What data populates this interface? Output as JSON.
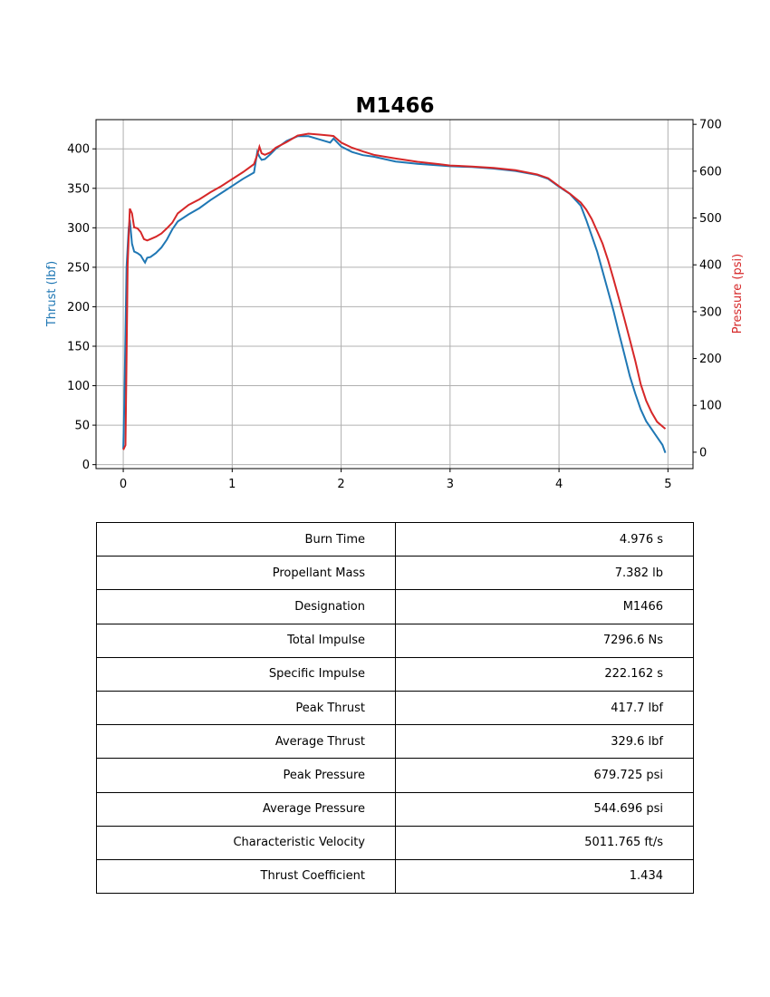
{
  "chart_data": {
    "type": "line",
    "title": "M1466",
    "xlabel": "",
    "ylabel_left": "Thrust (lbf)",
    "ylabel_right": "Pressure (psi)",
    "xlim": [
      -0.25,
      5.23
    ],
    "ylim_left": [
      -5,
      437
    ],
    "ylim_right": [
      -35,
      710
    ],
    "x_ticks": [
      0,
      1,
      2,
      3,
      4,
      5
    ],
    "y_ticks_left": [
      0,
      50,
      100,
      150,
      200,
      250,
      300,
      350,
      400
    ],
    "y_ticks_right": [
      0,
      100,
      200,
      300,
      400,
      500,
      600,
      700
    ],
    "grid": true,
    "colors": {
      "thrust": "#1f77b4",
      "pressure": "#d62728"
    },
    "series": [
      {
        "axis": "left",
        "x": [
          0.0,
          0.01,
          0.03,
          0.05,
          0.06,
          0.08,
          0.1,
          0.13,
          0.16,
          0.19,
          0.2,
          0.22,
          0.25,
          0.3,
          0.35,
          0.4,
          0.45,
          0.5,
          0.6,
          0.7,
          0.8,
          0.9,
          1.0,
          1.1,
          1.2,
          1.23,
          1.25,
          1.27,
          1.3,
          1.35,
          1.4,
          1.5,
          1.6,
          1.7,
          1.8,
          1.9,
          1.93,
          2.0,
          2.1,
          2.2,
          2.3,
          2.5,
          2.7,
          2.9,
          3.0,
          3.2,
          3.4,
          3.6,
          3.8,
          3.9,
          4.0,
          4.1,
          4.2,
          4.25,
          4.3,
          4.35,
          4.4,
          4.45,
          4.5,
          4.55,
          4.6,
          4.65,
          4.7,
          4.75,
          4.8,
          4.85,
          4.9,
          4.95,
          4.976
        ],
        "y": [
          20,
          80,
          250,
          300,
          310,
          280,
          270,
          268,
          265,
          258,
          256,
          262,
          263,
          268,
          275,
          285,
          298,
          308,
          317,
          325,
          335,
          344,
          353,
          362,
          370,
          396,
          390,
          386,
          387,
          393,
          400,
          410,
          416,
          416,
          412,
          408,
          413,
          403,
          396,
          392,
          390,
          384,
          381,
          379,
          378,
          377,
          375,
          372,
          367,
          362,
          352,
          343,
          328,
          310,
          290,
          270,
          245,
          220,
          195,
          167,
          140,
          112,
          90,
          70,
          55,
          45,
          35,
          25,
          15
        ]
      },
      {
        "axis": "right",
        "x": [
          0.0,
          0.02,
          0.03,
          0.04,
          0.06,
          0.08,
          0.1,
          0.13,
          0.16,
          0.19,
          0.22,
          0.25,
          0.3,
          0.35,
          0.4,
          0.45,
          0.5,
          0.6,
          0.7,
          0.8,
          0.9,
          1.0,
          1.1,
          1.2,
          1.23,
          1.25,
          1.27,
          1.3,
          1.35,
          1.4,
          1.5,
          1.6,
          1.7,
          1.8,
          1.9,
          1.93,
          2.0,
          2.1,
          2.2,
          2.3,
          2.5,
          2.7,
          2.9,
          3.0,
          3.2,
          3.4,
          3.6,
          3.8,
          3.9,
          4.0,
          4.1,
          4.2,
          4.25,
          4.3,
          4.35,
          4.4,
          4.45,
          4.5,
          4.55,
          4.6,
          4.65,
          4.7,
          4.75,
          4.8,
          4.85,
          4.9,
          4.95,
          4.976
        ],
        "y": [
          5,
          15,
          200,
          400,
          520,
          510,
          480,
          478,
          470,
          455,
          452,
          455,
          460,
          467,
          478,
          490,
          510,
          528,
          540,
          555,
          568,
          583,
          598,
          615,
          635,
          652,
          638,
          635,
          640,
          650,
          662,
          676,
          680,
          678,
          676,
          675,
          661,
          650,
          642,
          635,
          627,
          620,
          615,
          612,
          610,
          607,
          602,
          593,
          585,
          568,
          552,
          533,
          518,
          498,
          472,
          445,
          410,
          370,
          328,
          285,
          240,
          195,
          145,
          110,
          85,
          65,
          55,
          50
        ]
      }
    ]
  },
  "table": [
    {
      "label": "Burn Time",
      "value": "4.976 s"
    },
    {
      "label": "Propellant Mass",
      "value": "7.382 lb"
    },
    {
      "label": "Designation",
      "value": "M1466"
    },
    {
      "label": "Total Impulse",
      "value": "7296.6 Ns"
    },
    {
      "label": "Specific Impulse",
      "value": "222.162 s"
    },
    {
      "label": "Peak Thrust",
      "value": "417.7 lbf"
    },
    {
      "label": "Average Thrust",
      "value": "329.6 lbf"
    },
    {
      "label": "Peak Pressure",
      "value": "679.725 psi"
    },
    {
      "label": "Average Pressure",
      "value": "544.696 psi"
    },
    {
      "label": "Characteristic Velocity",
      "value": "5011.765 ft/s"
    },
    {
      "label": "Thrust Coefficient",
      "value": "1.434"
    }
  ]
}
